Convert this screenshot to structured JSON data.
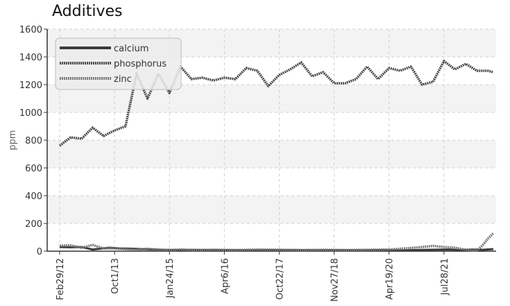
{
  "chart_data": {
    "type": "line",
    "title": "Additives",
    "xlabel": "",
    "ylabel": "ppm",
    "ylim": [
      0,
      1600
    ],
    "yticks": [
      0,
      200,
      400,
      600,
      800,
      1000,
      1200,
      1400,
      1600
    ],
    "xticks": [
      "Feb29/12",
      "Oct1/13",
      "Jan24/15",
      "Apr6/16",
      "Oct22/17",
      "Nov27/18",
      "Apr19/20",
      "Jul28/21"
    ],
    "grid": true,
    "legend_position": "top-left",
    "x_index_range": [
      0,
      79
    ],
    "series": [
      {
        "name": "calcium",
        "color": "#3a3a3a",
        "style": "solid",
        "x": [
          0,
          2,
          4,
          6,
          9,
          11,
          13,
          15,
          17,
          19,
          21,
          24,
          27,
          31,
          35,
          39,
          43,
          47,
          51,
          55,
          59,
          63,
          67,
          71,
          73,
          75,
          77,
          79
        ],
        "values": [
          30,
          28,
          30,
          12,
          25,
          20,
          18,
          15,
          12,
          10,
          8,
          10,
          8,
          8,
          6,
          8,
          8,
          6,
          8,
          6,
          8,
          6,
          10,
          12,
          8,
          12,
          10,
          15
        ]
      },
      {
        "name": "phosphorus",
        "color": "#4a4a4a",
        "style": "dashed",
        "x": [
          0,
          2,
          4,
          6,
          8,
          10,
          12,
          14,
          16,
          18,
          20,
          22,
          24,
          26,
          28,
          30,
          32,
          34,
          36,
          38,
          40,
          42,
          44,
          46,
          48,
          50,
          52,
          54,
          56,
          58,
          60,
          62,
          64,
          66,
          68,
          70,
          72,
          74,
          76,
          78,
          79
        ],
        "values": [
          760,
          820,
          810,
          890,
          830,
          870,
          900,
          1280,
          1100,
          1280,
          1140,
          1330,
          1240,
          1250,
          1230,
          1250,
          1240,
          1320,
          1300,
          1190,
          1270,
          1310,
          1360,
          1260,
          1290,
          1210,
          1210,
          1240,
          1330,
          1240,
          1320,
          1300,
          1330,
          1200,
          1220,
          1370,
          1310,
          1350,
          1300,
          1300,
          1290
        ]
      },
      {
        "name": "zinc",
        "color": "#7a7a7a",
        "style": "dashed",
        "x": [
          0,
          2,
          4,
          6,
          8,
          10,
          12,
          14,
          16,
          18,
          20,
          22,
          24,
          28,
          32,
          36,
          40,
          44,
          48,
          52,
          56,
          60,
          63,
          66,
          68,
          70,
          72,
          74,
          76,
          77,
          78,
          79
        ],
        "values": [
          40,
          42,
          25,
          45,
          20,
          20,
          15,
          10,
          18,
          10,
          8,
          12,
          8,
          10,
          8,
          12,
          10,
          8,
          10,
          8,
          10,
          12,
          20,
          30,
          38,
          30,
          25,
          10,
          5,
          40,
          90,
          130
        ]
      }
    ]
  }
}
